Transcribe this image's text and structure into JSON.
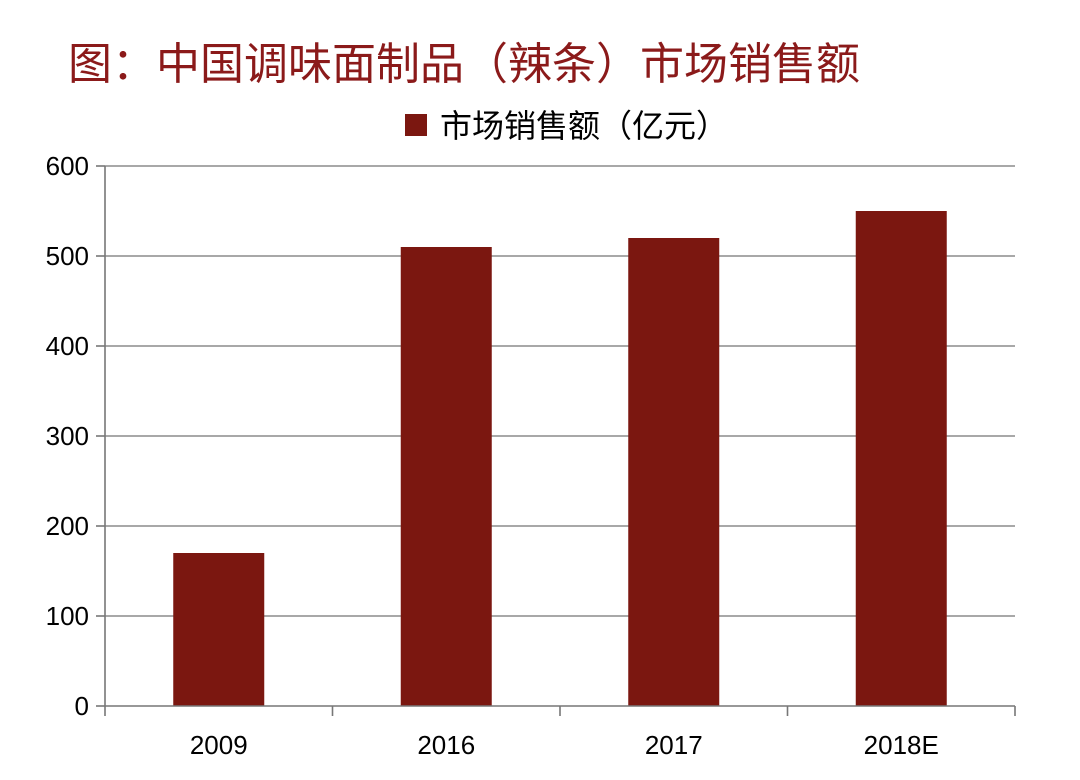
{
  "title": "图：中国调味面制品（辣条）市场销售额",
  "chart_data": {
    "type": "bar",
    "categories": [
      "2009",
      "2016",
      "2017",
      "2018E"
    ],
    "series": [
      {
        "name": "市场销售额（亿元）",
        "values": [
          170,
          510,
          520,
          550
        ]
      }
    ],
    "ylim": [
      0,
      600
    ],
    "yticks": [
      0,
      100,
      200,
      300,
      400,
      500,
      600
    ],
    "grid": true,
    "legend_position": "top-center",
    "colors": {
      "bar": "#7b1710",
      "grid": "#8c8c8c",
      "title": "#8b1a1a"
    }
  }
}
